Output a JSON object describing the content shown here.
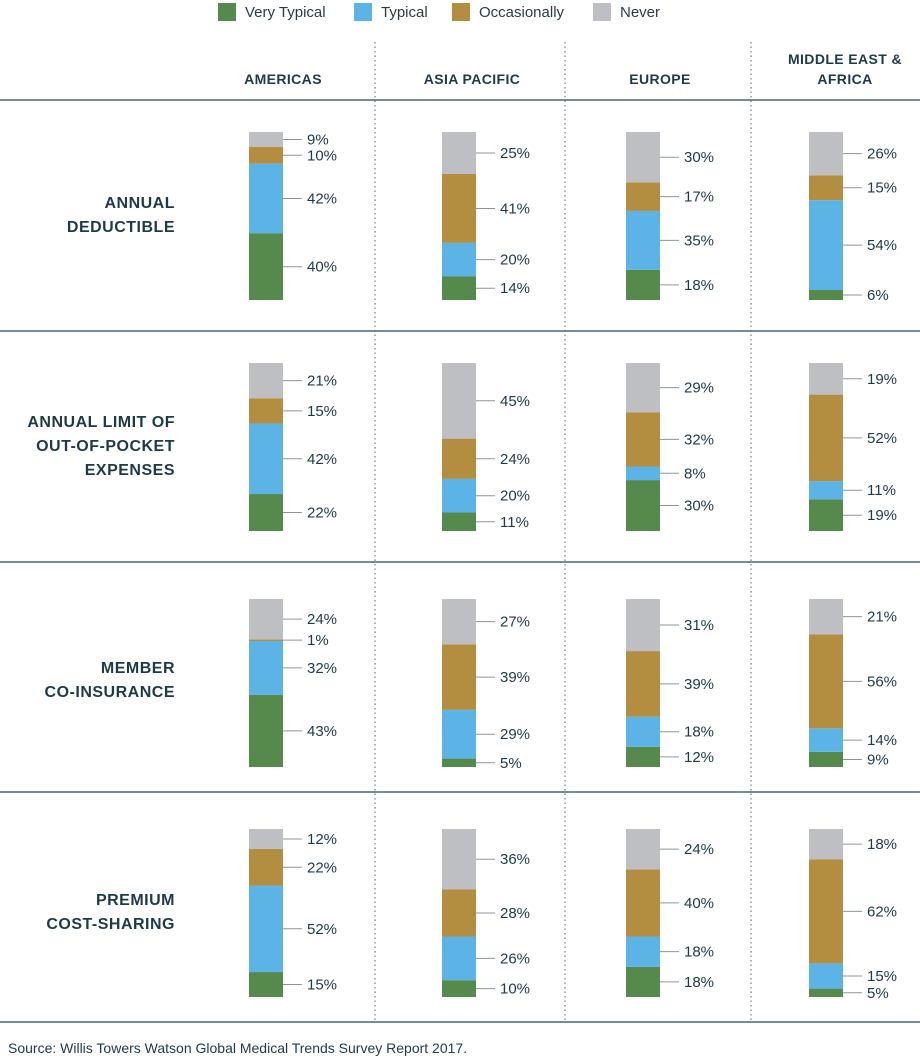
{
  "legend": [
    {
      "label": "Very Typical",
      "color": "#558a4c"
    },
    {
      "label": "Typical",
      "color": "#5bb3e6"
    },
    {
      "label": "Occasionally",
      "color": "#b48e40"
    },
    {
      "label": "Never",
      "color": "#bebfc2"
    }
  ],
  "source": "Source: Willis Towers Watson Global Medical Trends Survey Report 2017.",
  "chart_data": {
    "type": "bar",
    "stacked": true,
    "categories": [
      "AMERICAS",
      "ASIA PACIFIC",
      "EUROPE",
      "MIDDLE EAST & AFRICA"
    ],
    "region_header_lines": [
      [
        "AMERICAS"
      ],
      [
        "ASIA PACIFIC"
      ],
      [
        "EUROPE"
      ],
      [
        "MIDDLE EAST &",
        "AFRICA"
      ]
    ],
    "legend_order": [
      "Very Typical",
      "Typical",
      "Occasionally",
      "Never"
    ],
    "colors": {
      "Very Typical": "#558a4c",
      "Typical": "#5bb3e6",
      "Occasionally": "#b48e40",
      "Never": "#bebfc2"
    },
    "rows": [
      {
        "label_lines": [
          "ANNUAL",
          "DEDUCTIBLE"
        ],
        "series": [
          {
            "name": "Very Typical",
            "values": [
              40,
              14,
              18,
              6
            ]
          },
          {
            "name": "Typical",
            "values": [
              42,
              20,
              35,
              54
            ]
          },
          {
            "name": "Occasionally",
            "values": [
              10,
              41,
              17,
              15
            ]
          },
          {
            "name": "Never",
            "values": [
              9,
              25,
              30,
              26
            ]
          }
        ]
      },
      {
        "label_lines": [
          "ANNUAL LIMIT OF",
          "OUT-OF-POCKET",
          "EXPENSES"
        ],
        "series": [
          {
            "name": "Very Typical",
            "values": [
              22,
              11,
              30,
              19
            ]
          },
          {
            "name": "Typical",
            "values": [
              42,
              20,
              8,
              11
            ]
          },
          {
            "name": "Occasionally",
            "values": [
              15,
              24,
              32,
              52
            ]
          },
          {
            "name": "Never",
            "values": [
              21,
              45,
              29,
              19
            ]
          }
        ]
      },
      {
        "label_lines": [
          "MEMBER",
          "CO-INSURANCE"
        ],
        "series": [
          {
            "name": "Very Typical",
            "values": [
              43,
              5,
              12,
              9
            ]
          },
          {
            "name": "Typical",
            "values": [
              32,
              29,
              18,
              14
            ]
          },
          {
            "name": "Occasionally",
            "values": [
              1,
              39,
              39,
              56
            ]
          },
          {
            "name": "Never",
            "values": [
              24,
              27,
              31,
              21
            ]
          }
        ]
      },
      {
        "label_lines": [
          "PREMIUM",
          "COST-SHARING"
        ],
        "series": [
          {
            "name": "Very Typical",
            "values": [
              15,
              10,
              18,
              5
            ]
          },
          {
            "name": "Typical",
            "values": [
              52,
              26,
              18,
              15
            ]
          },
          {
            "name": "Occasionally",
            "values": [
              22,
              28,
              40,
              62
            ]
          },
          {
            "name": "Never",
            "values": [
              12,
              36,
              24,
              18
            ]
          }
        ]
      }
    ],
    "value_suffix": "%"
  }
}
